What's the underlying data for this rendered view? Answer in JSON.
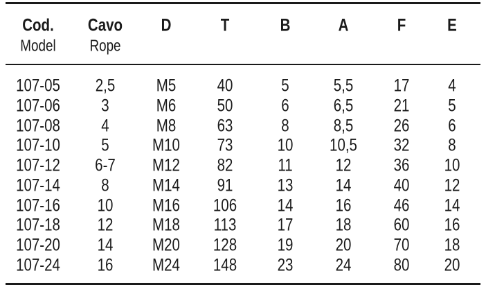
{
  "table": {
    "columns": [
      {
        "label": "Cod.",
        "sublabel": "Model"
      },
      {
        "label": "Cavo",
        "sublabel": "Rope"
      },
      {
        "label": "D"
      },
      {
        "label": "T"
      },
      {
        "label": "B"
      },
      {
        "label": "A"
      },
      {
        "label": "F"
      },
      {
        "label": "E"
      }
    ],
    "rows": [
      [
        "107-05",
        "2,5",
        "M5",
        "40",
        "5",
        "5,5",
        "17",
        "4"
      ],
      [
        "107-06",
        "3",
        "M6",
        "50",
        "6",
        "6,5",
        "21",
        "5"
      ],
      [
        "107-08",
        "4",
        "M8",
        "63",
        "8",
        "8,5",
        "26",
        "6"
      ],
      [
        "107-10",
        "5",
        "M10",
        "73",
        "10",
        "10,5",
        "32",
        "8"
      ],
      [
        "107-12",
        "6-7",
        "M12",
        "82",
        "11",
        "12",
        "36",
        "10"
      ],
      [
        "107-14",
        "8",
        "M14",
        "91",
        "13",
        "14",
        "40",
        "12"
      ],
      [
        "107-16",
        "10",
        "M16",
        "106",
        "14",
        "16",
        "46",
        "14"
      ],
      [
        "107-18",
        "12",
        "M18",
        "113",
        "17",
        "18",
        "60",
        "16"
      ],
      [
        "107-20",
        "14",
        "M20",
        "128",
        "19",
        "20",
        "70",
        "18"
      ],
      [
        "107-24",
        "16",
        "M24",
        "148",
        "23",
        "24",
        "80",
        "20"
      ]
    ]
  }
}
